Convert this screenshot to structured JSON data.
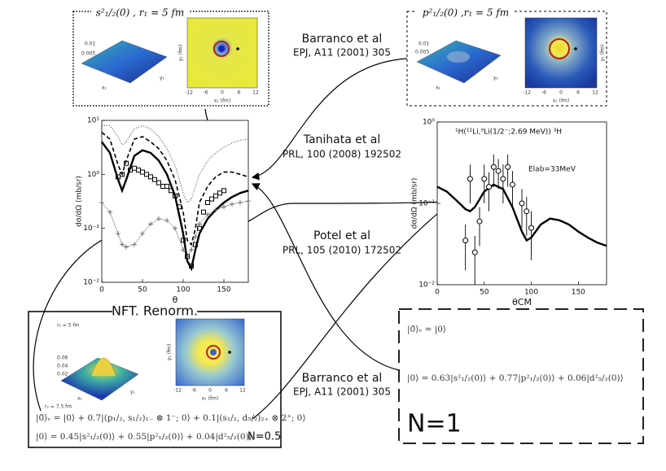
{
  "references": {
    "barranco_top": {
      "author": "Barranco et al",
      "journal": "EPJ, A11 (2001) 305"
    },
    "tanihata": {
      "author": "Tanihata et al",
      "journal": "PRL, 100 (2008) 192502"
    },
    "potel": {
      "author": "Potel et al",
      "journal": "PRL, 105 (2010) 172502"
    },
    "barranco_bottom": {
      "author": "Barranco et al",
      "journal": "EPJ, A11 (2001) 305"
    }
  },
  "insets": {
    "top_left": {
      "title": "s²₁/₂(0) , r₁ = 5 fm",
      "z_ticks": [
        "0.01",
        "0.005"
      ],
      "axis_ticks": [
        "-12",
        "-6",
        "0",
        "6",
        "12"
      ],
      "x_label": "x₁ (fm)",
      "y_label": "y₁ (fm)",
      "surface_x": "x₁",
      "surface_y": "y₁"
    },
    "top_right": {
      "title": "p²₁/₂(0) ,r₁ = 5 fm",
      "z_ticks": [
        "0.01",
        "0.005"
      ],
      "axis_ticks": [
        "-12",
        "-6",
        "0",
        "6",
        "12"
      ],
      "x_label": "x₁ (fm)",
      "y_label": "y₁ (fm)",
      "surface_x": "x₁",
      "surface_y": "y₁"
    },
    "bottom_left": {
      "title": "NFT. Renorm.",
      "r1": "r₁ = 5 fm",
      "r2": "r₂ = 7.5 fm",
      "z_ticks": [
        "0.06",
        "0.04",
        "0.02"
      ],
      "axis_ticks": [
        "-12",
        "-6",
        "0",
        "6",
        "12"
      ],
      "x_label": "x₁ (fm)",
      "y_label": "y₁ (fm)",
      "surface_x": "x₁",
      "surface_y": "y₁",
      "equations": [
        "|0̃⟩ᵥ = |0⟩ + 0.7|(p₁/₂, s₁/₂)₁₋ ⊗ 1⁻; 0⟩ + 0.1|(s₁/₂, d₅/₂)₂₊ ⊗ 2⁺; 0⟩",
        "|0⟩ = 0.45|s²₁/₂(0)⟩ + 0.55|p²₁/₂(0)⟩ + 0.04|d²₅/₂(0)⟩"
      ],
      "norm": "N=0.5"
    }
  },
  "result_box": {
    "equation1": "|0̃⟩ᵥ = |0⟩",
    "equation2": "|0⟩ = 0.63|s²₁/₂(0)⟩ + 0.77|p²₁/₂(0)⟩ + 0.06|d²₅/₂(0)⟩",
    "norm": "N=1"
  },
  "chart_data": [
    {
      "type": "line",
      "x_label": "θ",
      "y_label": "dσ/dΩ (mb/sr)",
      "log_y": true,
      "xlim": [
        0,
        180
      ],
      "xticks": [
        0,
        50,
        100,
        150
      ],
      "ylim": [
        0.01,
        10
      ],
      "yticks": [
        {
          "value": 0.01,
          "label": "10⁻²"
        },
        {
          "value": 0.1,
          "label": "10⁻¹"
        },
        {
          "value": 1,
          "label": "10⁰"
        },
        {
          "value": 10,
          "label": "10¹"
        }
      ],
      "x": [
        0,
        10,
        20,
        25,
        30,
        40,
        50,
        60,
        70,
        80,
        90,
        100,
        105,
        110,
        115,
        120,
        130,
        140,
        150,
        160,
        170,
        180
      ],
      "series": [
        {
          "style": "thick",
          "color": "#000000",
          "values": [
            4,
            2.5,
            0.8,
            0.5,
            0.8,
            2.2,
            2.8,
            2.5,
            1.8,
            1.0,
            0.4,
            0.08,
            0.025,
            0.018,
            0.04,
            0.08,
            0.15,
            0.22,
            0.3,
            0.38,
            0.45,
            0.5
          ]
        },
        {
          "style": "dashed",
          "color": "#000000",
          "values": [
            6,
            4.5,
            1.5,
            1.0,
            1.8,
            4.5,
            5,
            4,
            3,
            1.8,
            0.8,
            0.2,
            0.06,
            0.05,
            0.1,
            0.3,
            0.6,
            0.9,
            1.1,
            1.1,
            1.0,
            0.9
          ]
        },
        {
          "style": "dotted",
          "color": "#333333",
          "values": [
            8,
            8,
            5,
            3.5,
            4,
            7,
            8,
            7,
            5,
            3,
            1.5,
            0.45,
            0.3,
            0.35,
            0.6,
            1.0,
            1.8,
            2.5,
            3.2,
            3.8,
            4.3,
            4.5
          ]
        },
        {
          "style": "plus",
          "color": "#555555",
          "values": [
            0.3,
            0.2,
            0.08,
            0.05,
            0.045,
            0.05,
            0.08,
            0.12,
            0.15,
            0.14,
            0.1,
            0.04,
            0.03,
            0.04,
            0.07,
            0.12,
            0.18,
            0.22,
            0.25,
            0.28,
            0.3,
            0.32
          ]
        }
      ],
      "points": {
        "marker": "square",
        "color": "#000000",
        "x": [
          20,
          25,
          30,
          35,
          40,
          45,
          50,
          55,
          60,
          65,
          70,
          75,
          80,
          85,
          90,
          95,
          100,
          105,
          110,
          115,
          120,
          125,
          130,
          135,
          140,
          145,
          150
        ],
        "values": [
          0.9,
          1.0,
          1.6,
          1.2,
          1.3,
          1.2,
          1.1,
          1.0,
          0.9,
          0.8,
          0.7,
          0.6,
          0.6,
          0.5,
          0.4,
          0.25,
          0.06,
          0.03,
          0.02,
          0.05,
          0.1,
          0.2,
          0.3,
          0.35,
          0.4,
          0.45,
          0.5
        ]
      }
    },
    {
      "type": "line",
      "x_label": "θCM",
      "y_label": "dσ/dΩ (mb/sr)",
      "log_y": true,
      "annotations": [
        "¹H(¹¹Li,⁹Li(1/2⁻;2.69 MeV)) ³H",
        "Elab=33MeV"
      ],
      "xlim": [
        0,
        180
      ],
      "xticks": [
        0,
        50,
        100,
        150
      ],
      "ylim": [
        0.01,
        1
      ],
      "yticks": [
        {
          "value": 0.01,
          "label": "10⁻²"
        },
        {
          "value": 0.1,
          "label": "10⁻¹"
        },
        {
          "value": 1,
          "label": "10⁰"
        }
      ],
      "x": [
        0,
        10,
        20,
        30,
        35,
        40,
        50,
        60,
        70,
        80,
        90,
        95,
        100,
        110,
        120,
        130,
        140,
        150,
        160,
        170,
        180
      ],
      "series": [
        {
          "style": "thick",
          "color": "#000000",
          "values": [
            0.16,
            0.14,
            0.11,
            0.085,
            0.08,
            0.09,
            0.14,
            0.17,
            0.15,
            0.09,
            0.045,
            0.035,
            0.038,
            0.055,
            0.065,
            0.062,
            0.055,
            0.045,
            0.038,
            0.033,
            0.03
          ]
        }
      ],
      "points": {
        "marker": "circle",
        "color": "#000000",
        "x": [
          30,
          35,
          40,
          45,
          50,
          55,
          60,
          65,
          70,
          75,
          80,
          90,
          95,
          100
        ],
        "values": [
          0.035,
          0.2,
          0.025,
          0.06,
          0.2,
          0.16,
          0.28,
          0.25,
          0.2,
          0.28,
          0.17,
          0.1,
          0.08,
          0.05
        ],
        "errors": [
          0.02,
          0.1,
          0.015,
          0.03,
          0.1,
          0.08,
          0.12,
          0.1,
          0.1,
          0.12,
          0.08,
          0.05,
          0.04,
          0.03
        ]
      }
    }
  ]
}
